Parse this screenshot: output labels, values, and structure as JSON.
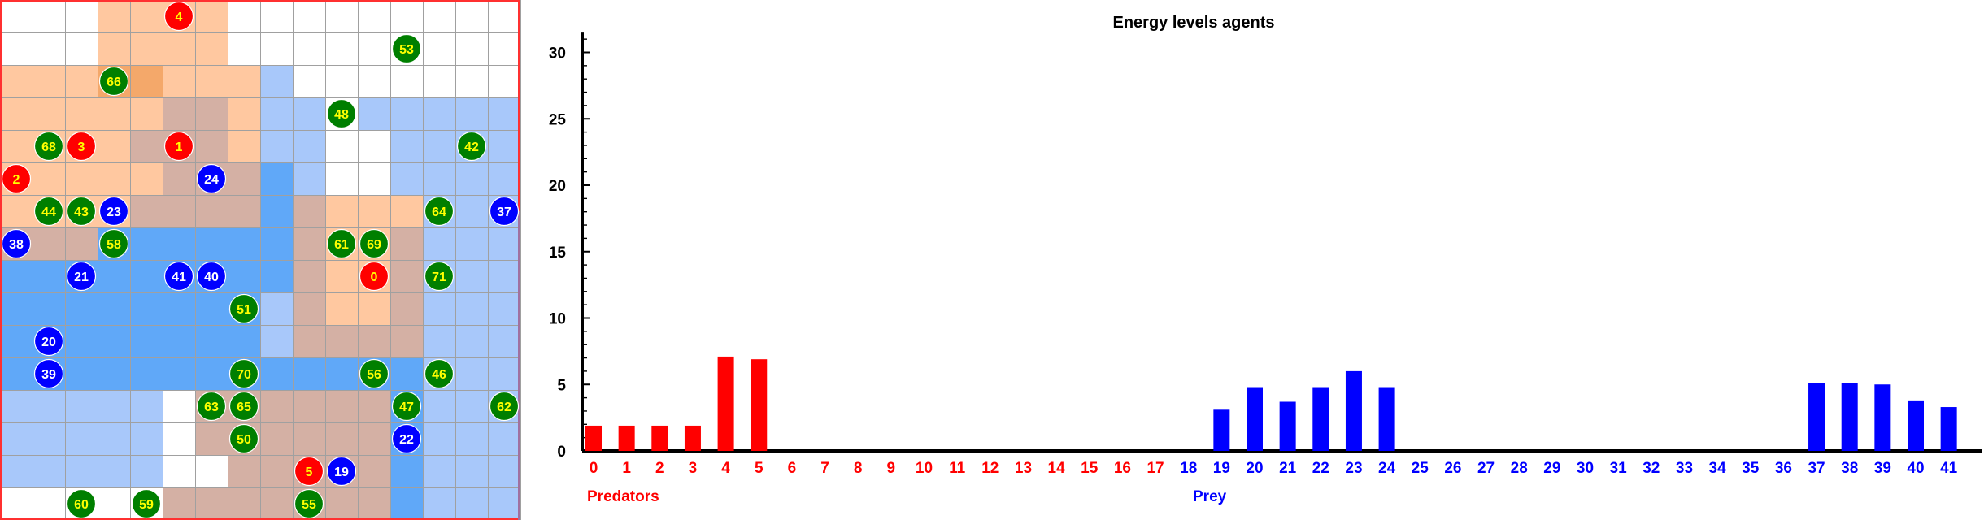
{
  "colors": {
    "predator": "#ff0000",
    "prey": "#0000ff",
    "plant": "#007f00",
    "label_yellow": "#ffff00",
    "label_white": "#ffffff",
    "grid_line": "#a0a0a0",
    "border": "#ff3030",
    "border_right": "#a070a0",
    "territory_predator": "#ffc8a0",
    "territory_predator_strong": "#f4a86a",
    "territory_prey": "#a8c8fa",
    "territory_prey_strong": "#60a8f8",
    "territory_mixed": "#d4b0a4",
    "territory_mixed_dark": "#b4a2b0"
  },
  "grid": {
    "cols": 16,
    "rows": 16,
    "cells": [
      "___pppp_________",
      "___pppp_________",
      "ppp22pppb_______",
      "pppppmmpbb_bbbbb",
      "ppppmmmpbb__bbbb",
      "pppppmmmBb__bbbb",
      "ppppmmmmBmpppbbb",
      "mmmBBBBBBmppmbbb",
      "BBBBBBBBBmppmbbb",
      "BBBBBBBBbmppmbbb",
      "BBBBBBBBbmmmmbbb",
      "BBBBBBBBBBBBBbbb",
      "bbbbb_mmmmmmBbbb",
      "bbbbb_mmmmmmBbbb",
      "bbbbb__mmmmmBbbb",
      "_____mmmmmmmBbbb"
    ]
  },
  "agents": [
    {
      "id": "4",
      "kind": "predator",
      "col": 5,
      "row": 0
    },
    {
      "id": "53",
      "kind": "plant",
      "col": 12,
      "row": 1
    },
    {
      "id": "66",
      "kind": "plant",
      "col": 3,
      "row": 2
    },
    {
      "id": "48",
      "kind": "plant",
      "col": 10,
      "row": 3
    },
    {
      "id": "68",
      "kind": "plant",
      "col": 1,
      "row": 4
    },
    {
      "id": "3",
      "kind": "predator",
      "col": 2,
      "row": 4
    },
    {
      "id": "1",
      "kind": "predator",
      "col": 5,
      "row": 4
    },
    {
      "id": "42",
      "kind": "plant",
      "col": 14,
      "row": 4
    },
    {
      "id": "2",
      "kind": "predator",
      "col": 0,
      "row": 5
    },
    {
      "id": "24",
      "kind": "prey",
      "col": 6,
      "row": 5
    },
    {
      "id": "44",
      "kind": "plant",
      "col": 1,
      "row": 6
    },
    {
      "id": "43",
      "kind": "plant",
      "col": 2,
      "row": 6
    },
    {
      "id": "23",
      "kind": "prey",
      "col": 3,
      "row": 6
    },
    {
      "id": "64",
      "kind": "plant",
      "col": 13,
      "row": 6
    },
    {
      "id": "37",
      "kind": "prey",
      "col": 15,
      "row": 6
    },
    {
      "id": "38",
      "kind": "prey",
      "col": 0,
      "row": 7
    },
    {
      "id": "58",
      "kind": "plant",
      "col": 3,
      "row": 7
    },
    {
      "id": "61",
      "kind": "plant",
      "col": 10,
      "row": 7
    },
    {
      "id": "69",
      "kind": "plant",
      "col": 11,
      "row": 7
    },
    {
      "id": "21",
      "kind": "prey",
      "col": 2,
      "row": 8
    },
    {
      "id": "41",
      "kind": "prey",
      "col": 5,
      "row": 8
    },
    {
      "id": "40",
      "kind": "prey",
      "col": 6,
      "row": 8
    },
    {
      "id": "0",
      "kind": "predator",
      "col": 11,
      "row": 8
    },
    {
      "id": "71",
      "kind": "plant",
      "col": 13,
      "row": 8
    },
    {
      "id": "51",
      "kind": "plant",
      "col": 7,
      "row": 9
    },
    {
      "id": "20",
      "kind": "prey",
      "col": 1,
      "row": 10
    },
    {
      "id": "39",
      "kind": "prey",
      "col": 1,
      "row": 11
    },
    {
      "id": "70",
      "kind": "plant",
      "col": 7,
      "row": 11
    },
    {
      "id": "56",
      "kind": "plant",
      "col": 11,
      "row": 11
    },
    {
      "id": "46",
      "kind": "plant",
      "col": 13,
      "row": 11
    },
    {
      "id": "63",
      "kind": "plant",
      "col": 6,
      "row": 12
    },
    {
      "id": "65",
      "kind": "plant",
      "col": 7,
      "row": 12
    },
    {
      "id": "47",
      "kind": "plant",
      "col": 12,
      "row": 12
    },
    {
      "id": "62",
      "kind": "plant",
      "col": 15,
      "row": 12
    },
    {
      "id": "50",
      "kind": "plant",
      "col": 7,
      "row": 13
    },
    {
      "id": "22",
      "kind": "prey",
      "col": 12,
      "row": 13
    },
    {
      "id": "5",
      "kind": "predator",
      "col": 9,
      "row": 14
    },
    {
      "id": "19",
      "kind": "prey",
      "col": 10,
      "row": 14
    },
    {
      "id": "60",
      "kind": "plant",
      "col": 2,
      "row": 15
    },
    {
      "id": "59",
      "kind": "plant",
      "col": 4,
      "row": 15
    },
    {
      "id": "55",
      "kind": "plant",
      "col": 9,
      "row": 15
    }
  ],
  "chart_data": {
    "type": "bar",
    "title": "Energy levels agents",
    "ylim": [
      0,
      31
    ],
    "yticks": [
      0,
      5,
      10,
      15,
      20,
      25,
      30
    ],
    "categories": [
      "0",
      "1",
      "2",
      "3",
      "4",
      "5",
      "6",
      "7",
      "8",
      "9",
      "10",
      "11",
      "12",
      "13",
      "14",
      "15",
      "16",
      "17",
      "18",
      "19",
      "20",
      "21",
      "22",
      "23",
      "24",
      "25",
      "26",
      "27",
      "28",
      "29",
      "30",
      "31",
      "32",
      "33",
      "34",
      "35",
      "36",
      "37",
      "38",
      "39",
      "40",
      "41"
    ],
    "predator_count": 18,
    "values": [
      1.9,
      1.9,
      1.9,
      1.9,
      7.1,
      6.9,
      0,
      0,
      0,
      0,
      0,
      0,
      0,
      0,
      0,
      0,
      0,
      0,
      0,
      3.1,
      4.8,
      3.7,
      4.8,
      6.0,
      4.8,
      0,
      0,
      0,
      0,
      0,
      0,
      0,
      0,
      0,
      0,
      0,
      0,
      5.1,
      5.1,
      5.0,
      3.8,
      3.3
    ],
    "group_labels": {
      "predators": "Predators",
      "prey": "Prey"
    },
    "grid": false
  }
}
